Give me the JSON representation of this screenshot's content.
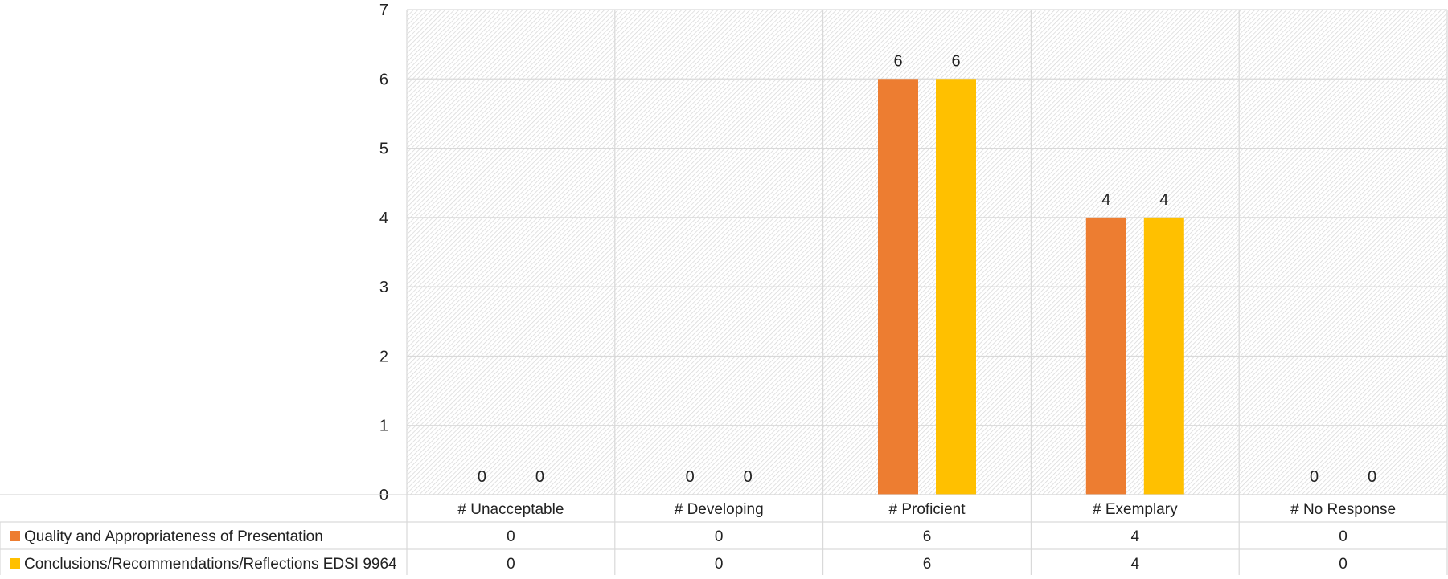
{
  "chart_data": {
    "type": "bar",
    "categories": [
      "# Unacceptable",
      "# Developing",
      "# Proficient",
      "# Exemplary",
      "# No Response"
    ],
    "series": [
      {
        "name": "Quality and Appropriateness of Presentation",
        "values": [
          0,
          0,
          6,
          4,
          0
        ],
        "color": "#ED7D31"
      },
      {
        "name": "Conclusions/Recommendations/Reflections EDSI 9964",
        "values": [
          0,
          0,
          6,
          4,
          0
        ],
        "color": "#FFC000"
      }
    ],
    "yticks": [
      "0",
      "1",
      "2",
      "3",
      "4",
      "5",
      "6",
      "7"
    ],
    "ylim": [
      0,
      7
    ],
    "grid": true,
    "legend": "data-table-left",
    "data_labels": true,
    "data_table": true
  }
}
